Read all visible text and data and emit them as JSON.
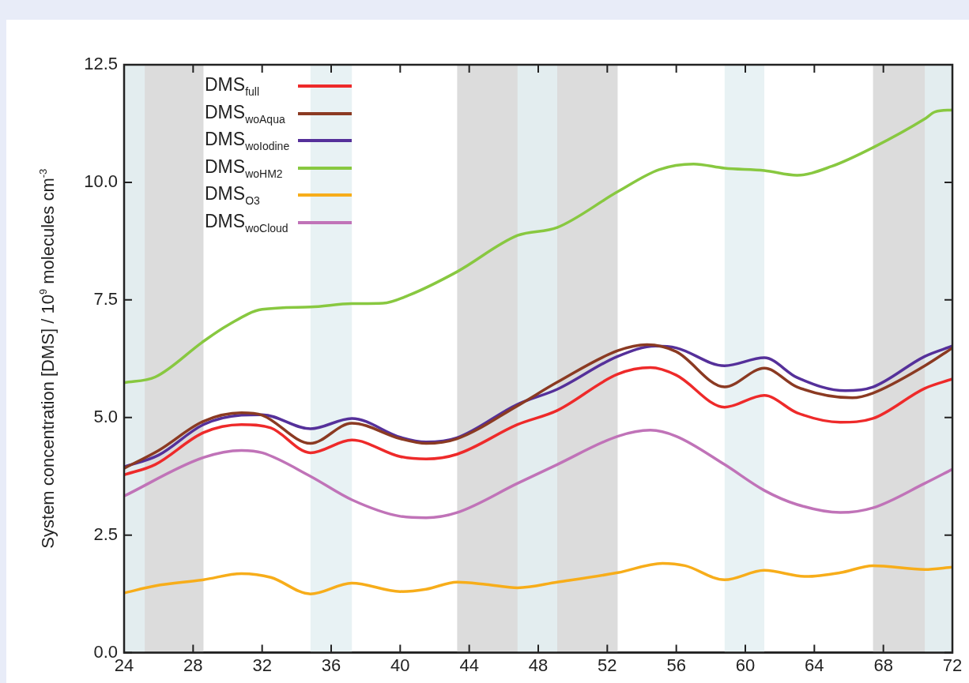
{
  "chart_data": {
    "type": "line",
    "ylabel": "System concentration [DMS] / 10$^{9}$ molecules cm$^{-3}$",
    "xlim": [
      24,
      72
    ],
    "xticks": [
      24,
      28,
      32,
      36,
      40,
      44,
      48,
      52,
      56,
      60,
      64,
      68,
      72
    ],
    "ylim": [
      0,
      12.5
    ],
    "yticks": [
      {
        "value": 0,
        "label": "0.0"
      },
      2.5,
      {
        "value": 5,
        "label": "5.0"
      },
      7.5,
      {
        "value": 10,
        "label": "10.0"
      },
      12.5
    ],
    "legend": "top left",
    "grid": false,
    "bands": [
      {
        "axis": "x",
        "from": 24,
        "to": 28.6,
        "color": "#d6d6d6"
      },
      {
        "axis": "x",
        "from": 43.3,
        "to": 52.6,
        "color": "#d6d6d6"
      },
      {
        "axis": "x",
        "from": 67.4,
        "to": 72,
        "color": "#d6d6d6"
      },
      {
        "axis": "x",
        "from": 24,
        "to": 25.2,
        "color": "#e4f0f2"
      },
      {
        "axis": "x",
        "from": 34.8,
        "to": 37.2,
        "color": "#e4f0f2"
      },
      {
        "axis": "x",
        "from": 46.8,
        "to": 49.1,
        "color": "#e4f0f2"
      },
      {
        "axis": "x",
        "from": 58.8,
        "to": 61.1,
        "color": "#e4f0f2"
      },
      {
        "axis": "x",
        "from": 70.4,
        "to": 72,
        "color": "#e4f0f2"
      }
    ],
    "series": [
      {
        "name": "DMS$_{full}$",
        "color": "#ee2a2a",
        "x": [
          24,
          25.8,
          28.6,
          30.8,
          32.5,
          34.8,
          37.2,
          40,
          41.5,
          43.3,
          46.8,
          49.1,
          52.6,
          54.5,
          56,
          58.8,
          61.1,
          63,
          65.5,
          67.4,
          70.4,
          72
        ],
        "values": [
          3.78,
          4.0,
          4.68,
          4.85,
          4.78,
          4.25,
          4.52,
          4.17,
          4.12,
          4.22,
          4.85,
          5.15,
          5.92,
          6.06,
          5.9,
          5.22,
          5.47,
          5.1,
          4.9,
          4.98,
          5.62,
          5.82
        ]
      },
      {
        "name": "DMS$_{woAqua}$",
        "color": "#8b3a22",
        "x": [
          24,
          26,
          28.6,
          30.8,
          32,
          34.8,
          37.2,
          40,
          41.5,
          43.3,
          46.8,
          49.1,
          52.6,
          54.3,
          56,
          58.8,
          61.1,
          63,
          66.2,
          67.4,
          70.4,
          72
        ],
        "values": [
          3.92,
          4.3,
          4.92,
          5.1,
          5.05,
          4.45,
          4.88,
          4.55,
          4.45,
          4.55,
          5.25,
          5.75,
          6.42,
          6.55,
          6.4,
          5.65,
          6.05,
          5.65,
          5.42,
          5.52,
          6.1,
          6.48
        ]
      },
      {
        "name": "DMS$_{woIodine}$",
        "color": "#55309a",
        "x": [
          24,
          26,
          28.6,
          30.8,
          32,
          34.8,
          37.2,
          40,
          41.5,
          43.3,
          46.8,
          49.1,
          52.6,
          54.8,
          56,
          58.8,
          61.1,
          63,
          65.8,
          67.4,
          70.4,
          72
        ],
        "values": [
          3.95,
          4.2,
          4.85,
          5.05,
          5.06,
          4.76,
          4.98,
          4.58,
          4.48,
          4.57,
          5.28,
          5.6,
          6.3,
          6.52,
          6.48,
          6.1,
          6.27,
          5.85,
          5.57,
          5.65,
          6.3,
          6.52
        ]
      },
      {
        "name": "DMS$_{woHM2}$",
        "color": "#88c840",
        "x": [
          24,
          25.8,
          28.6,
          30,
          32,
          34.8,
          37.2,
          39,
          40.5,
          43.3,
          46.8,
          49.1,
          52.6,
          55,
          57,
          58.8,
          61.1,
          63,
          65,
          67.4,
          70.4,
          71,
          72
        ],
        "values": [
          5.74,
          5.86,
          6.62,
          6.96,
          7.3,
          7.35,
          7.42,
          7.43,
          7.6,
          8.1,
          8.87,
          9.04,
          9.8,
          10.27,
          10.39,
          10.3,
          10.25,
          10.15,
          10.34,
          10.74,
          11.35,
          11.5,
          11.54
        ]
      },
      {
        "name": "DMS$_{O3}$",
        "color": "#f7ad1a",
        "x": [
          24,
          25.8,
          28.6,
          30.8,
          32.5,
          34.8,
          37.2,
          40,
          41.5,
          43.3,
          45,
          46.8,
          49.1,
          52.6,
          55.2,
          56.5,
          58.8,
          61.1,
          63.5,
          65.5,
          67.4,
          70.4,
          72
        ],
        "values": [
          1.27,
          1.42,
          1.55,
          1.68,
          1.6,
          1.25,
          1.48,
          1.3,
          1.35,
          1.5,
          1.45,
          1.38,
          1.5,
          1.7,
          1.9,
          1.85,
          1.55,
          1.75,
          1.62,
          1.7,
          1.85,
          1.77,
          1.82
        ]
      },
      {
        "name": "DMS$_{woCloud}$",
        "color": "#c073b8",
        "x": [
          24,
          28.6,
          30.8,
          32,
          34.8,
          37.2,
          40,
          41.5,
          43.3,
          46.8,
          49.1,
          52.6,
          54.5,
          56,
          58.8,
          61.1,
          63,
          65.5,
          67.4,
          70.4,
          72
        ],
        "values": [
          3.33,
          4.15,
          4.3,
          4.25,
          3.75,
          3.25,
          2.9,
          2.87,
          2.98,
          3.6,
          4.0,
          4.6,
          4.73,
          4.6,
          4.0,
          3.45,
          3.15,
          2.98,
          3.08,
          3.6,
          3.9
        ]
      }
    ]
  }
}
